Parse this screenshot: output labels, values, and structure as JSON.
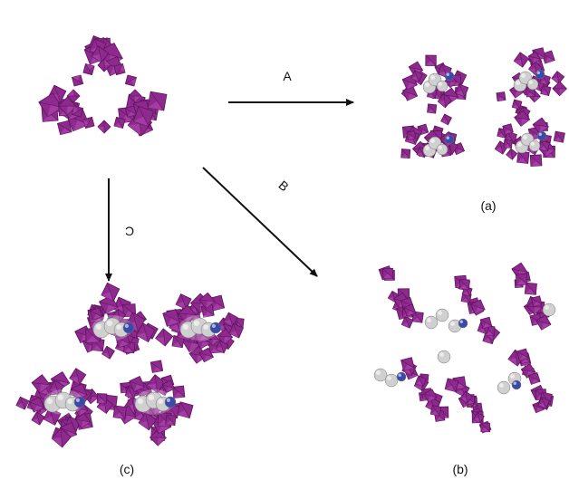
{
  "colors": {
    "polyhedron": "#8e2a8e",
    "polyhedron_light": "#b54ab5",
    "polyhedron_dark": "#5e145e",
    "carbon": "#d0d0d0",
    "nitrogen": "#3a4aa8",
    "arrow": "#111111"
  },
  "arrows": {
    "a": "A",
    "b": "B",
    "c": "C"
  },
  "panels": {
    "a": "(a)",
    "b": "(b)",
    "c": "(c)"
  }
}
